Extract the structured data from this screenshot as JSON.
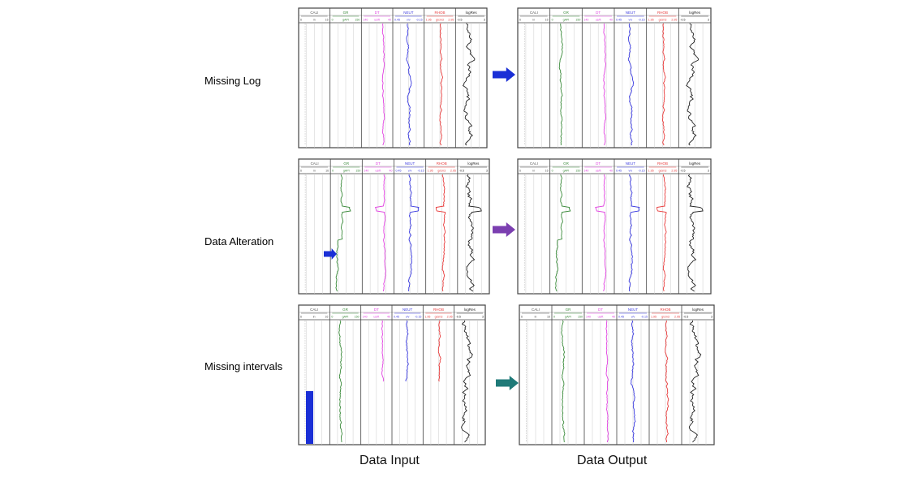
{
  "rows": [
    {
      "label": "Missing Log",
      "color": "#7a7f88",
      "arrow_color": "#1a2fd6",
      "scenario": "missing-log"
    },
    {
      "label": "Data Alteration",
      "color": "#8e56c9",
      "arrow_color": "#7b3fb0",
      "scenario": "alteration"
    },
    {
      "label": "Missing intervals",
      "color": "#2d5b4c",
      "arrow_color": "#1f7a78",
      "scenario": "missing-interval"
    }
  ],
  "columns": {
    "input": "Data Input",
    "output": "Data Output"
  },
  "tracks": [
    {
      "name": "CALI",
      "scale": [
        "6",
        "in",
        "16"
      ],
      "color": "#555555"
    },
    {
      "name": "GR",
      "scale": [
        "0",
        "gAPI",
        "150"
      ],
      "color": "#3a8a3a"
    },
    {
      "name": "DT",
      "scale": [
        "140",
        "us/ft",
        "40"
      ],
      "color": "#e040e0"
    },
    {
      "name": "NEUT",
      "scale": [
        "0.45",
        "v/v",
        "-0.15"
      ],
      "color": "#3a3ae0"
    },
    {
      "name": "RHOB",
      "scale": [
        "1.95",
        "g/cm3",
        "2.95"
      ],
      "color": "#e83a3a"
    },
    {
      "name": "logRes",
      "scale": [
        "-0.5",
        "",
        "3"
      ],
      "color": "#222222"
    }
  ],
  "highlight_color": "#1a2fd6"
}
